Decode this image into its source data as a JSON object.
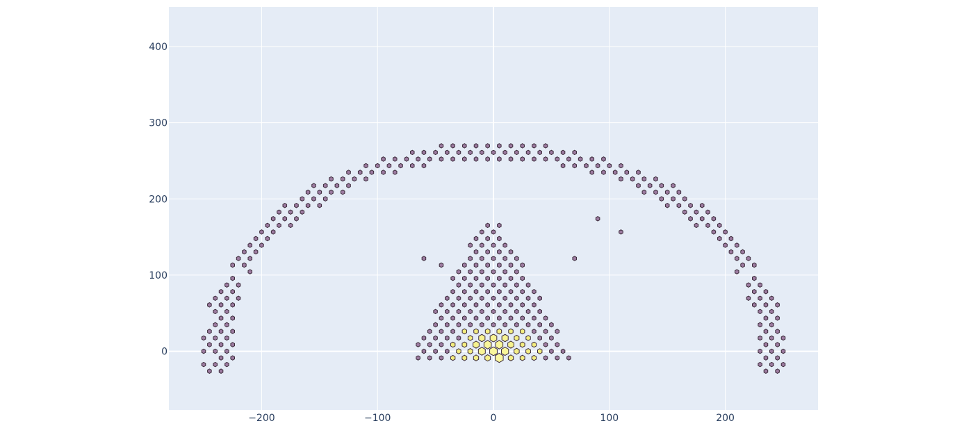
{
  "chart_data": {
    "type": "hexbin",
    "title": "",
    "xlabel": "",
    "ylabel": "",
    "xlim": [
      -280,
      280
    ],
    "ylim": [
      -77,
      452
    ],
    "x_ticks": [
      -200,
      -100,
      0,
      100,
      200
    ],
    "x_tick_labels": [
      "−200",
      "−100",
      "0",
      "100",
      "200"
    ],
    "y_ticks": [
      0,
      100,
      200,
      300,
      400
    ],
    "y_tick_labels": [
      "0",
      "100",
      "200",
      "300",
      "400"
    ],
    "grid": true,
    "legend": "none",
    "colors": {
      "plot_background": "#e5ecf6",
      "grid": "#ffffff",
      "low_density": "#9c7ba0",
      "high_density": "#f5f28a",
      "outline": "#3b2a3a"
    },
    "bin_spacing": {
      "dx": 10,
      "dy": 8.7
    },
    "hoop_arc": {
      "center": [
        0,
        0
      ],
      "radius": 240,
      "theta_from_deg": -5,
      "theta_to_deg": 185,
      "rows": 3
    },
    "paint_region": {
      "x_range": [
        -64,
        70
      ],
      "y_range": [
        -8,
        172
      ]
    },
    "isolated_bins": [
      [
        88,
        170
      ],
      [
        107,
        155
      ],
      [
        -58,
        122
      ],
      [
        68,
        122
      ],
      [
        -44,
        113
      ],
      [
        24,
        113
      ]
    ],
    "high_density_bins": [
      [
        0,
        -8,
        1.0
      ],
      [
        0,
        0,
        0.9
      ],
      [
        -5,
        9,
        0.85
      ],
      [
        5,
        9,
        0.85
      ],
      [
        10,
        0,
        0.8
      ],
      [
        -10,
        0,
        0.75
      ],
      [
        0,
        17,
        0.7
      ],
      [
        10,
        17,
        0.6
      ],
      [
        -10,
        17,
        0.6
      ],
      [
        15,
        9,
        0.55
      ],
      [
        -15,
        9,
        0.55
      ]
    ]
  }
}
